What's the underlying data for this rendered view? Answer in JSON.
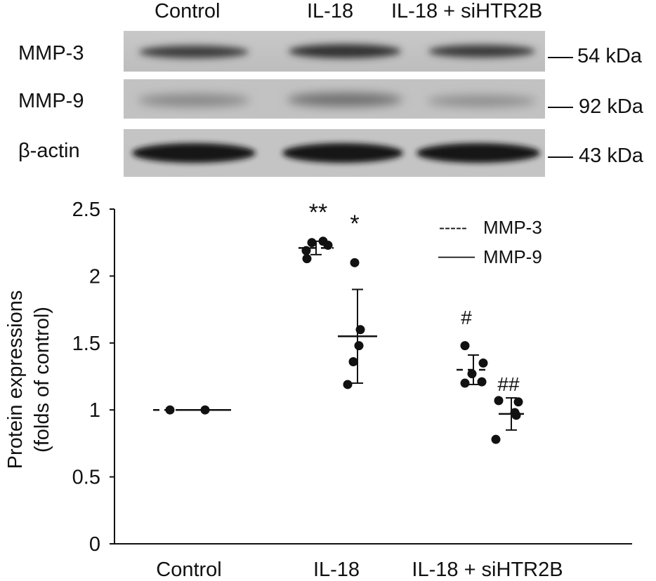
{
  "blot": {
    "lanes": [
      "Control",
      "IL-18",
      "IL-18 + siHTR2B"
    ],
    "rows": [
      {
        "protein": "MMP-3",
        "size": "54 kDa"
      },
      {
        "protein": "MMP-9",
        "size": "92 kDa"
      },
      {
        "protein": "β-actin",
        "size": "43 kDa"
      }
    ]
  },
  "chart_data": {
    "type": "scatter",
    "ylabel_line1": "Protein expressions",
    "ylabel_line2": "(folds of control)",
    "ylim": [
      0,
      2.5
    ],
    "yticks": [
      "0",
      "0.5",
      "1",
      "1.5",
      "2",
      "2.5"
    ],
    "categories": [
      "Control",
      "IL-18",
      "IL-18 + siHTR2B"
    ],
    "legend": {
      "position": "top-right",
      "entries": [
        {
          "marker": "-----",
          "label": "MMP-3"
        },
        {
          "marker": "——",
          "label": "MMP-9"
        }
      ]
    },
    "series": [
      {
        "name": "MMP-3",
        "style": "dashed",
        "groups": [
          {
            "category": "Control",
            "points": [
              1.0
            ],
            "mean": 1.0,
            "sd": 0
          },
          {
            "category": "IL-18",
            "points": [
              2.25,
              2.26,
              2.23,
              2.19,
              2.13
            ],
            "mean": 2.21,
            "sd": 0.05,
            "annotation": "**"
          },
          {
            "category": "IL-18 + siHTR2B",
            "points": [
              1.48,
              1.35,
              1.27,
              1.21,
              1.2
            ],
            "mean": 1.3,
            "sd": 0.11,
            "annotation": "#"
          }
        ]
      },
      {
        "name": "MMP-9",
        "style": "solid",
        "groups": [
          {
            "category": "Control",
            "points": [
              1.0
            ],
            "mean": 1.0,
            "sd": 0
          },
          {
            "category": "IL-18",
            "points": [
              2.1,
              1.6,
              1.48,
              1.36,
              1.19
            ],
            "mean": 1.55,
            "sd": 0.35,
            "annotation": "*"
          },
          {
            "category": "IL-18 + siHTR2B",
            "points": [
              1.07,
              1.06,
              0.98,
              0.96,
              0.78
            ],
            "mean": 0.97,
            "sd": 0.12,
            "annotation": "##"
          }
        ]
      }
    ]
  }
}
